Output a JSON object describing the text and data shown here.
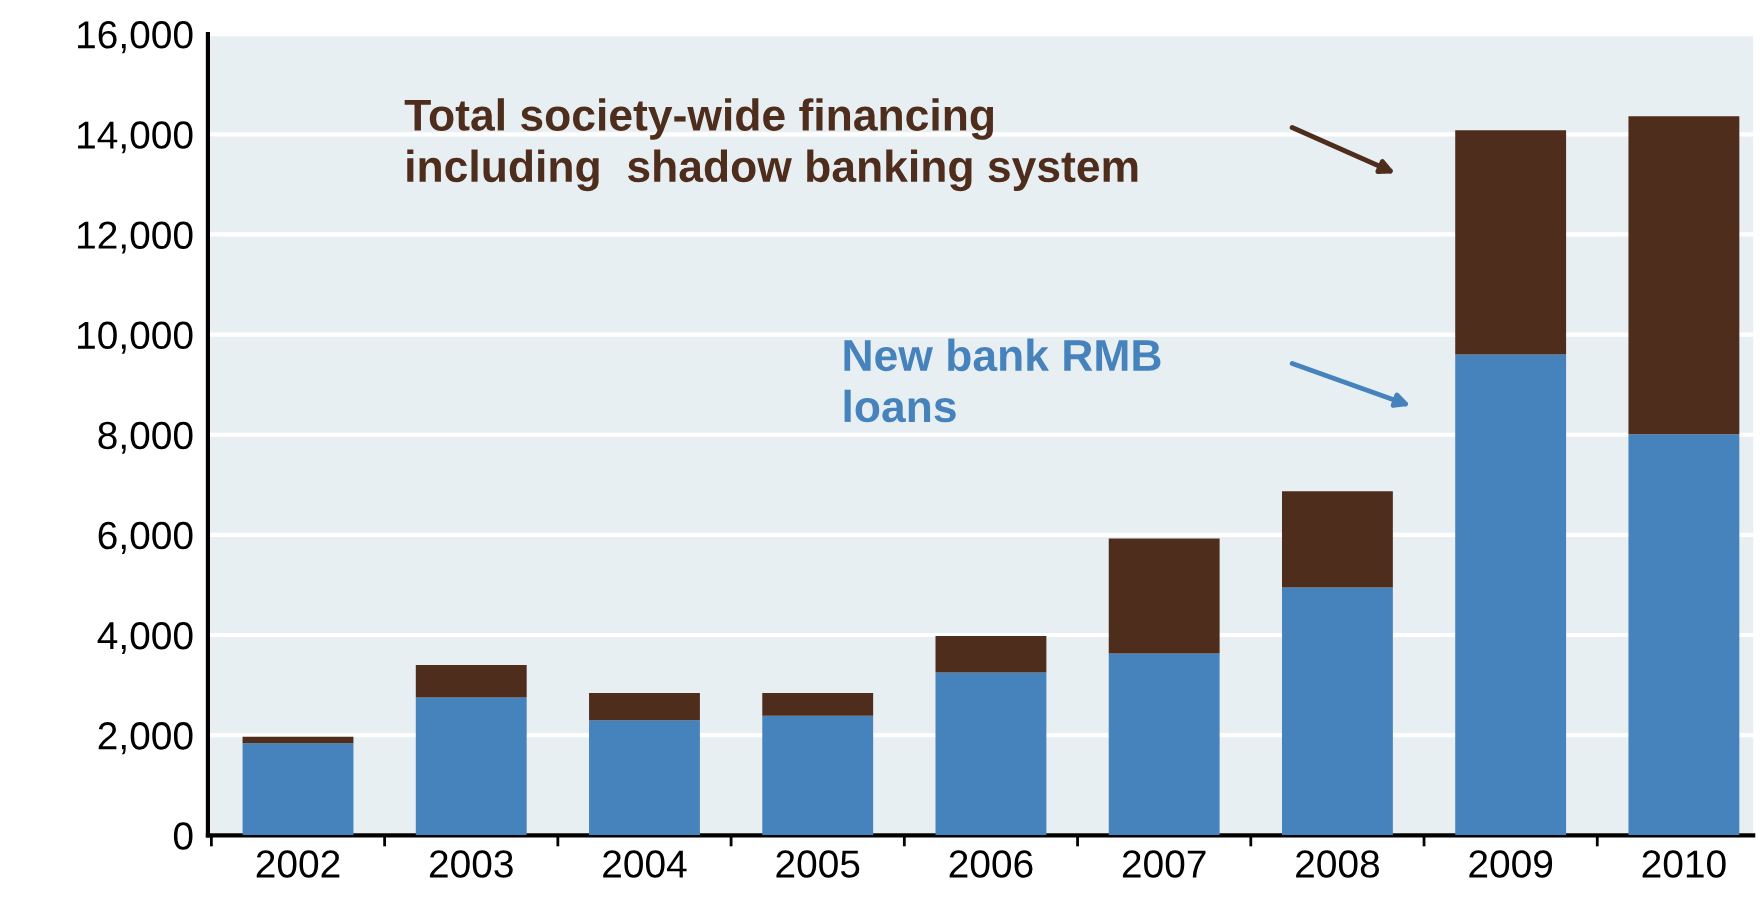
{
  "chart_data": {
    "type": "bar",
    "stacked": true,
    "categories": [
      "2002",
      "2003",
      "2004",
      "2005",
      "2006",
      "2007",
      "2008",
      "2009",
      "2010"
    ],
    "series": [
      {
        "color": "#4682bb",
        "values": [
          1840,
          2750,
          2300,
          2390,
          3250,
          3630,
          4950,
          9600,
          8010
        ]
      },
      {
        "color": "#4f2d1c",
        "values": [
          130,
          650,
          540,
          450,
          730,
          2300,
          1920,
          4480,
          6350
        ]
      }
    ],
    "annotations": [
      "New bank RMB\nloans",
      "Total society-wide financing\nincluding  shadow banking system"
    ],
    "ylim": [
      0,
      16000
    ],
    "yticks": [
      {
        "value": 0,
        "label": "0"
      },
      {
        "value": 2000,
        "label": "2,000"
      },
      {
        "value": 4000,
        "label": "4,000"
      },
      {
        "value": 6000,
        "label": "6,000"
      },
      {
        "value": 8000,
        "label": "8,000"
      },
      {
        "value": 10000,
        "label": "10,000"
      },
      {
        "value": 12000,
        "label": "12,000"
      },
      {
        "value": 14000,
        "label": "14,000"
      },
      {
        "value": 16000,
        "label": "16,000"
      }
    ],
    "grid": "y"
  }
}
